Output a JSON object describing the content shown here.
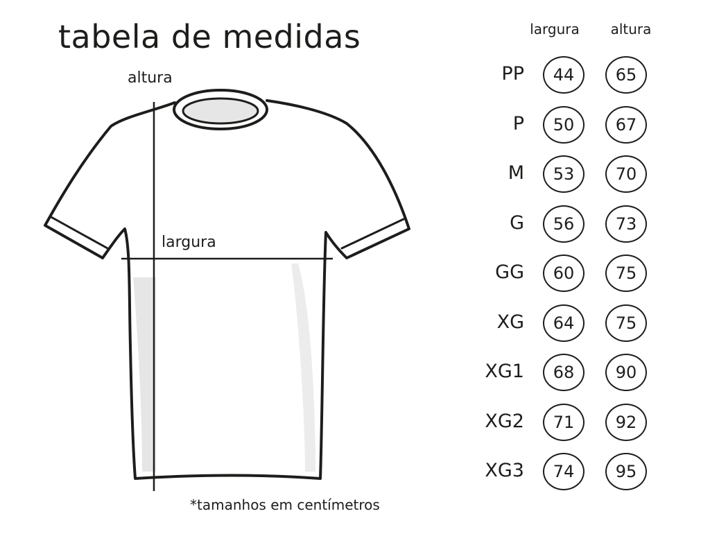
{
  "title": "tabela de medidas",
  "diagram": {
    "height_label": "altura",
    "width_label": "largura"
  },
  "table": {
    "headers": {
      "width": "largura",
      "height": "altura"
    },
    "rows": [
      {
        "size": "PP",
        "width": "44",
        "height": "65"
      },
      {
        "size": "P",
        "width": "50",
        "height": "67"
      },
      {
        "size": "M",
        "width": "53",
        "height": "70"
      },
      {
        "size": "G",
        "width": "56",
        "height": "73"
      },
      {
        "size": "GG",
        "width": "60",
        "height": "75"
      },
      {
        "size": "XG",
        "width": "64",
        "height": "75"
      },
      {
        "size": "XG1",
        "width": "68",
        "height": "90"
      },
      {
        "size": "XG2",
        "width": "71",
        "height": "92"
      },
      {
        "size": "XG3",
        "width": "74",
        "height": "95"
      }
    ]
  },
  "footnote": "*tamanhos em centímetros",
  "colors": {
    "ink": "#1d1d1b",
    "shading": "#e6e6e6"
  }
}
